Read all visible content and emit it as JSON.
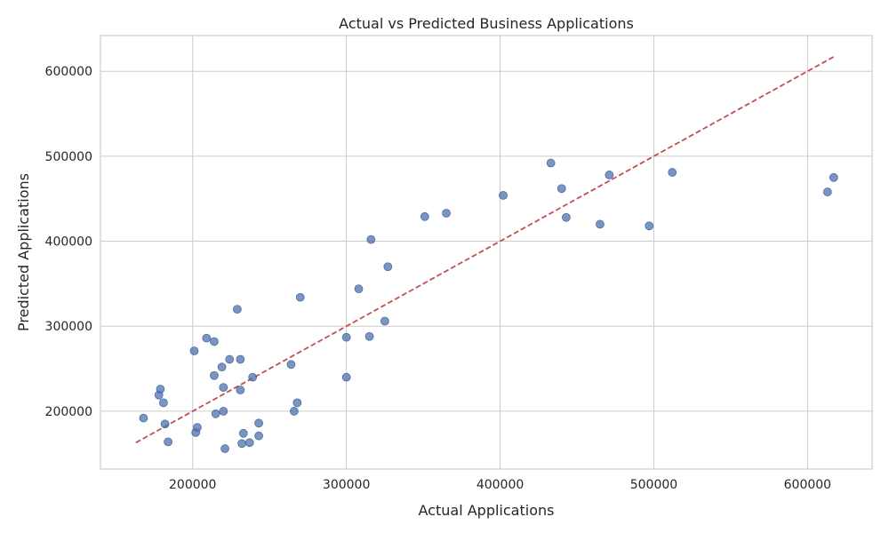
{
  "chart_data": {
    "type": "scatter",
    "title": "Actual vs Predicted Business Applications",
    "xlabel": "Actual Applications",
    "ylabel": "Predicted Applications",
    "xlim": [
      140000,
      642000
    ],
    "ylim": [
      132000,
      642000
    ],
    "xticks": [
      200000,
      300000,
      400000,
      500000,
      600000
    ],
    "yticks": [
      200000,
      300000,
      400000,
      500000,
      600000
    ],
    "xtick_labels": [
      "200000",
      "300000",
      "400000",
      "500000",
      "600000"
    ],
    "ytick_labels": [
      "200000",
      "300000",
      "400000",
      "500000",
      "600000"
    ],
    "grid": true,
    "point_color": "#4c72b0",
    "reference_line": {
      "x": [
        163000,
        617000
      ],
      "y": [
        163000,
        617000
      ],
      "color": "#c44e52",
      "style": "dashed"
    },
    "points": [
      {
        "x": 168000,
        "y": 192000
      },
      {
        "x": 178000,
        "y": 219000
      },
      {
        "x": 179000,
        "y": 226000
      },
      {
        "x": 181000,
        "y": 210000
      },
      {
        "x": 182000,
        "y": 185000
      },
      {
        "x": 184000,
        "y": 164000
      },
      {
        "x": 201000,
        "y": 271000
      },
      {
        "x": 202000,
        "y": 175000
      },
      {
        "x": 203000,
        "y": 181000
      },
      {
        "x": 209000,
        "y": 286000
      },
      {
        "x": 214000,
        "y": 242000
      },
      {
        "x": 214000,
        "y": 282000
      },
      {
        "x": 215000,
        "y": 197000
      },
      {
        "x": 219000,
        "y": 252000
      },
      {
        "x": 220000,
        "y": 200000
      },
      {
        "x": 220000,
        "y": 228000
      },
      {
        "x": 221000,
        "y": 156000
      },
      {
        "x": 224000,
        "y": 261000
      },
      {
        "x": 229000,
        "y": 320000
      },
      {
        "x": 231000,
        "y": 225000
      },
      {
        "x": 231000,
        "y": 261000
      },
      {
        "x": 232000,
        "y": 162000
      },
      {
        "x": 233000,
        "y": 174000
      },
      {
        "x": 237000,
        "y": 163000
      },
      {
        "x": 239000,
        "y": 240000
      },
      {
        "x": 243000,
        "y": 186000
      },
      {
        "x": 243000,
        "y": 171000
      },
      {
        "x": 264000,
        "y": 255000
      },
      {
        "x": 266000,
        "y": 200000
      },
      {
        "x": 268000,
        "y": 210000
      },
      {
        "x": 270000,
        "y": 334000
      },
      {
        "x": 300000,
        "y": 240000
      },
      {
        "x": 300000,
        "y": 287000
      },
      {
        "x": 308000,
        "y": 344000
      },
      {
        "x": 315000,
        "y": 288000
      },
      {
        "x": 316000,
        "y": 402000
      },
      {
        "x": 325000,
        "y": 306000
      },
      {
        "x": 327000,
        "y": 370000
      },
      {
        "x": 351000,
        "y": 429000
      },
      {
        "x": 365000,
        "y": 433000
      },
      {
        "x": 402000,
        "y": 454000
      },
      {
        "x": 433000,
        "y": 492000
      },
      {
        "x": 440000,
        "y": 462000
      },
      {
        "x": 443000,
        "y": 428000
      },
      {
        "x": 465000,
        "y": 420000
      },
      {
        "x": 471000,
        "y": 478000
      },
      {
        "x": 497000,
        "y": 418000
      },
      {
        "x": 512000,
        "y": 481000
      },
      {
        "x": 613000,
        "y": 458000
      },
      {
        "x": 617000,
        "y": 475000
      }
    ]
  }
}
